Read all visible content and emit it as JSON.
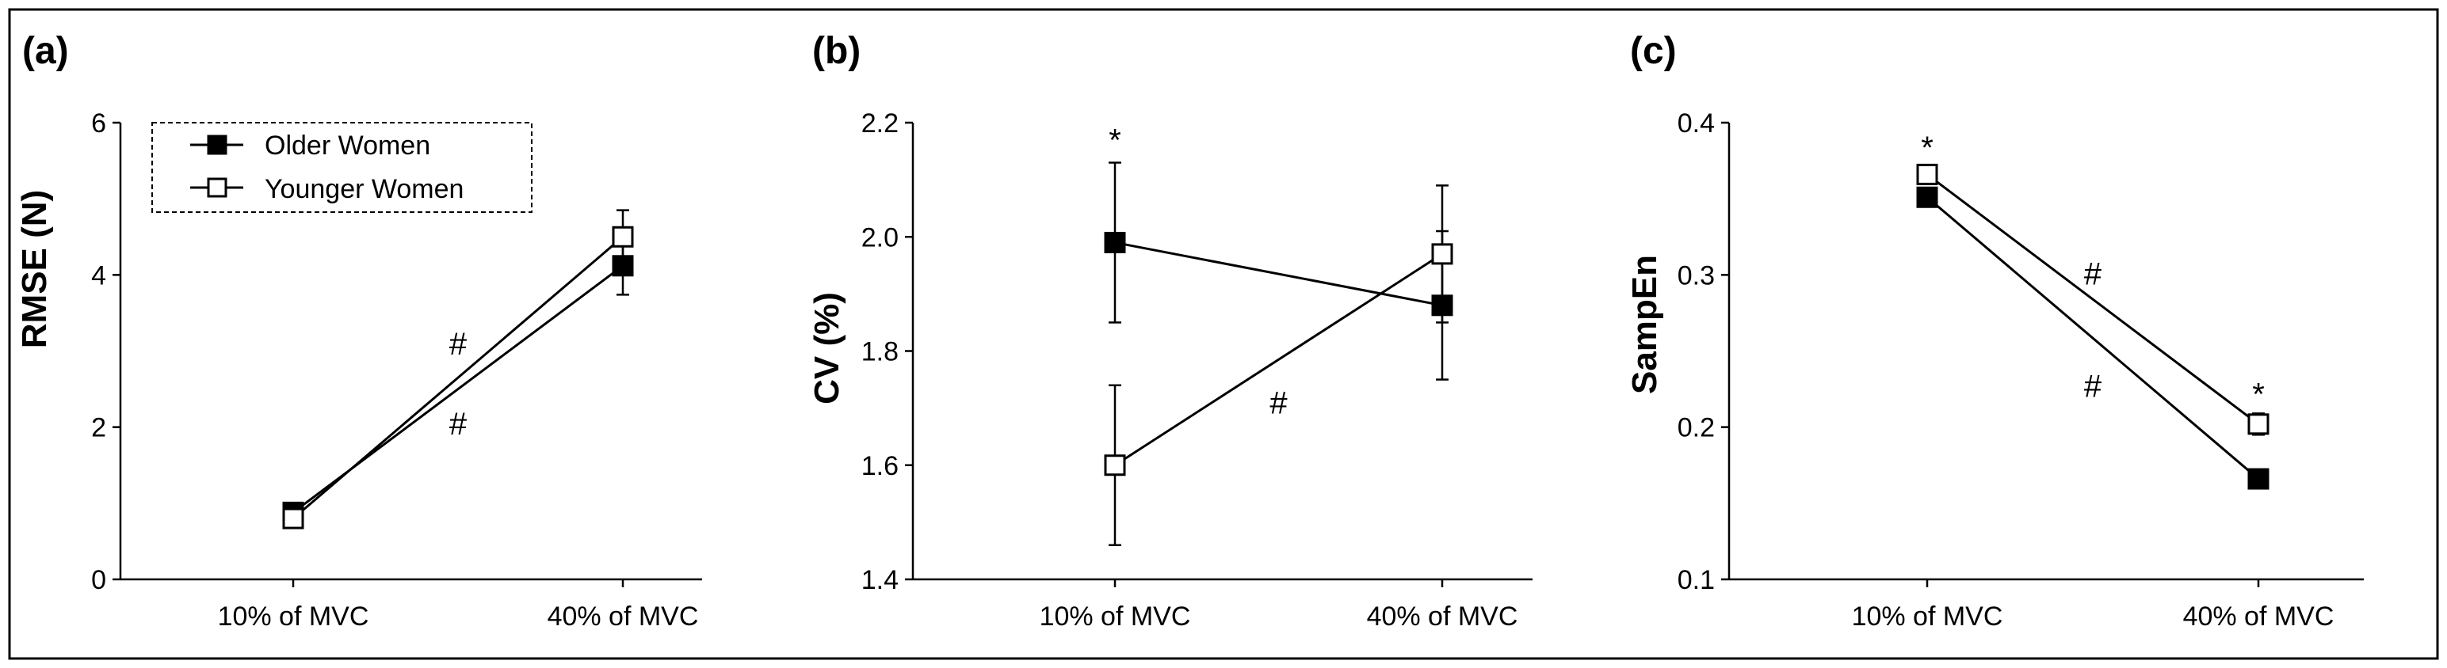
{
  "chart_data": [
    {
      "panel": "(a)",
      "type": "line",
      "ylabel": "RMSE (N)",
      "ylim": [
        0,
        6
      ],
      "yticks": [
        "0",
        "2",
        "4",
        "6"
      ],
      "ytick_values": [
        0,
        2,
        4,
        6
      ],
      "categories": [
        "10% of MVC",
        "40% of MVC"
      ],
      "series": [
        {
          "name": "Older Women",
          "marker": "filled-square",
          "values": [
            0.88,
            4.12
          ],
          "errors": [
            0.05,
            0.38
          ]
        },
        {
          "name": "Younger Women",
          "marker": "open-square",
          "values": [
            0.8,
            4.5
          ],
          "errors": [
            0.04,
            0.35
          ]
        }
      ],
      "legend": {
        "entries": [
          "Older Women",
          "Younger Women"
        ],
        "position": "top-left"
      },
      "annotations": [
        {
          "text": "#",
          "x_cat": 0.5,
          "y": 3.1
        },
        {
          "text": "#",
          "x_cat": 0.5,
          "y": 2.05
        }
      ]
    },
    {
      "panel": "(b)",
      "type": "line",
      "ylabel": "CV (%)",
      "ylim": [
        1.4,
        2.2
      ],
      "yticks": [
        "1.4",
        "1.6",
        "1.8",
        "2.0",
        "2.2"
      ],
      "ytick_values": [
        1.4,
        1.6,
        1.8,
        2.0,
        2.2
      ],
      "categories": [
        "10% of MVC",
        "40% of MVC"
      ],
      "series": [
        {
          "name": "Older Women",
          "marker": "filled-square",
          "values": [
            1.99,
            1.88
          ],
          "errors": [
            0.14,
            0.13
          ]
        },
        {
          "name": "Younger Women",
          "marker": "open-square",
          "values": [
            1.6,
            1.97
          ],
          "errors": [
            0.14,
            0.12
          ]
        }
      ],
      "annotations": [
        {
          "text": "*",
          "x_cat": 0,
          "y": 2.17
        },
        {
          "text": "#",
          "x_cat": 0.5,
          "y": 1.71
        }
      ]
    },
    {
      "panel": "(c)",
      "type": "line",
      "ylabel": "SampEn",
      "ylim": [
        0.1,
        0.4
      ],
      "yticks": [
        "0.1",
        "0.2",
        "0.3",
        "0.4"
      ],
      "ytick_values": [
        0.1,
        0.2,
        0.3,
        0.4
      ],
      "categories": [
        "10% of MVC",
        "40% of MVC"
      ],
      "series": [
        {
          "name": "Older Women",
          "marker": "filled-square",
          "values": [
            0.351,
            0.166
          ],
          "errors": [
            0.006,
            0.006
          ]
        },
        {
          "name": "Younger Women",
          "marker": "open-square",
          "values": [
            0.366,
            0.202
          ],
          "errors": [
            0.005,
            0.007
          ]
        }
      ],
      "annotations": [
        {
          "text": "*",
          "x_cat": 0,
          "y": 0.384
        },
        {
          "text": "*",
          "x_cat": 1,
          "y": 0.222
        },
        {
          "text": "#",
          "x_cat": 0.5,
          "y": 0.301
        },
        {
          "text": "#",
          "x_cat": 0.5,
          "y": 0.227
        }
      ]
    }
  ]
}
